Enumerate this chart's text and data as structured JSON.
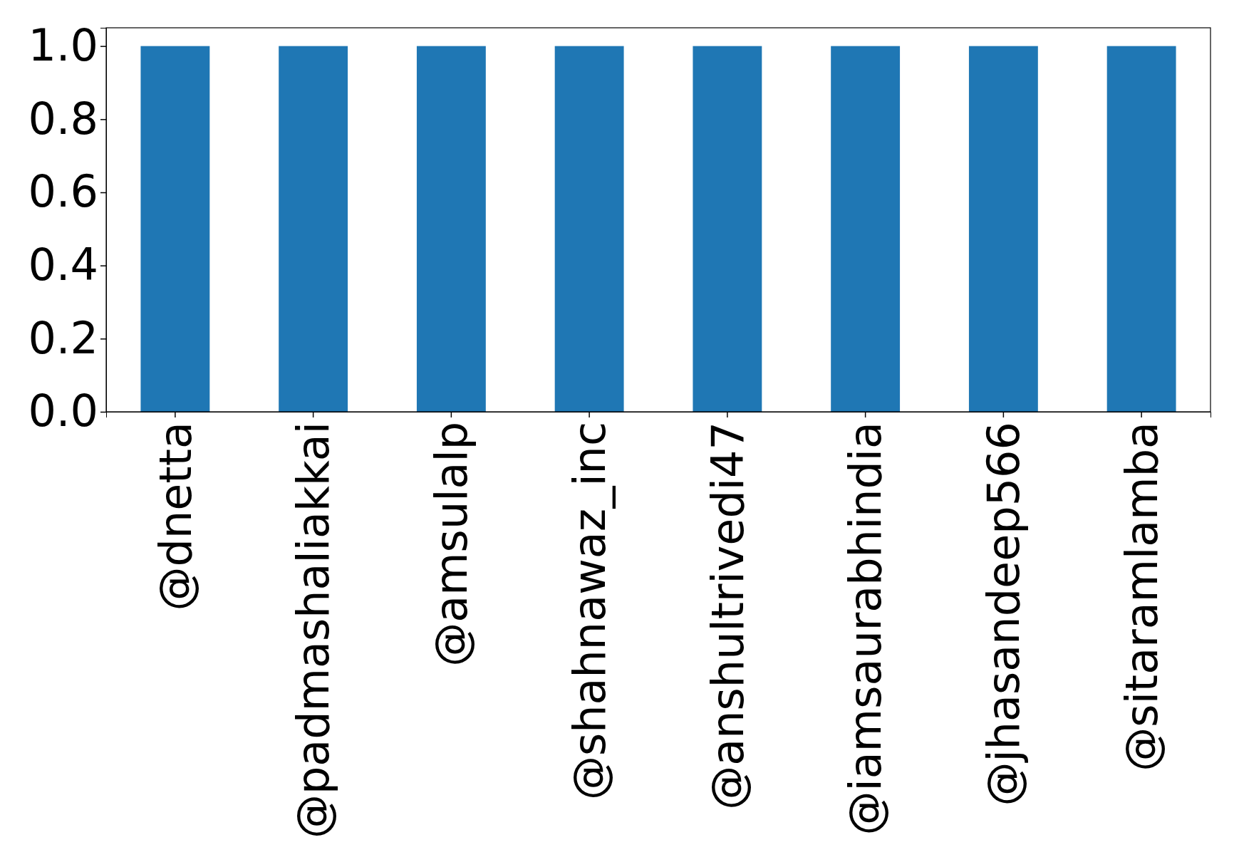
{
  "chart_data": {
    "type": "bar",
    "categories": [
      "@dnetta",
      "@padmashaliakkai",
      "@amsulalp",
      "@shahnawaz_inc",
      "@anshultrivedi47",
      "@iamsaurabhindia",
      "@jhasandeep566",
      "@sitaramlamba"
    ],
    "values": [
      1,
      1,
      1,
      1,
      1,
      1,
      1,
      1
    ],
    "color": "#1f77b4",
    "ylim": [
      0,
      1.05
    ],
    "yticks": [
      {
        "value": 0,
        "label": "0.0"
      },
      {
        "value": 0.2,
        "label": "0.2"
      },
      {
        "value": 0.4,
        "label": "0.4"
      },
      {
        "value": 0.6,
        "label": "0.6"
      },
      {
        "value": 0.8,
        "label": "0.8"
      },
      {
        "value": 1,
        "label": "1.0"
      }
    ],
    "grid": false
  }
}
